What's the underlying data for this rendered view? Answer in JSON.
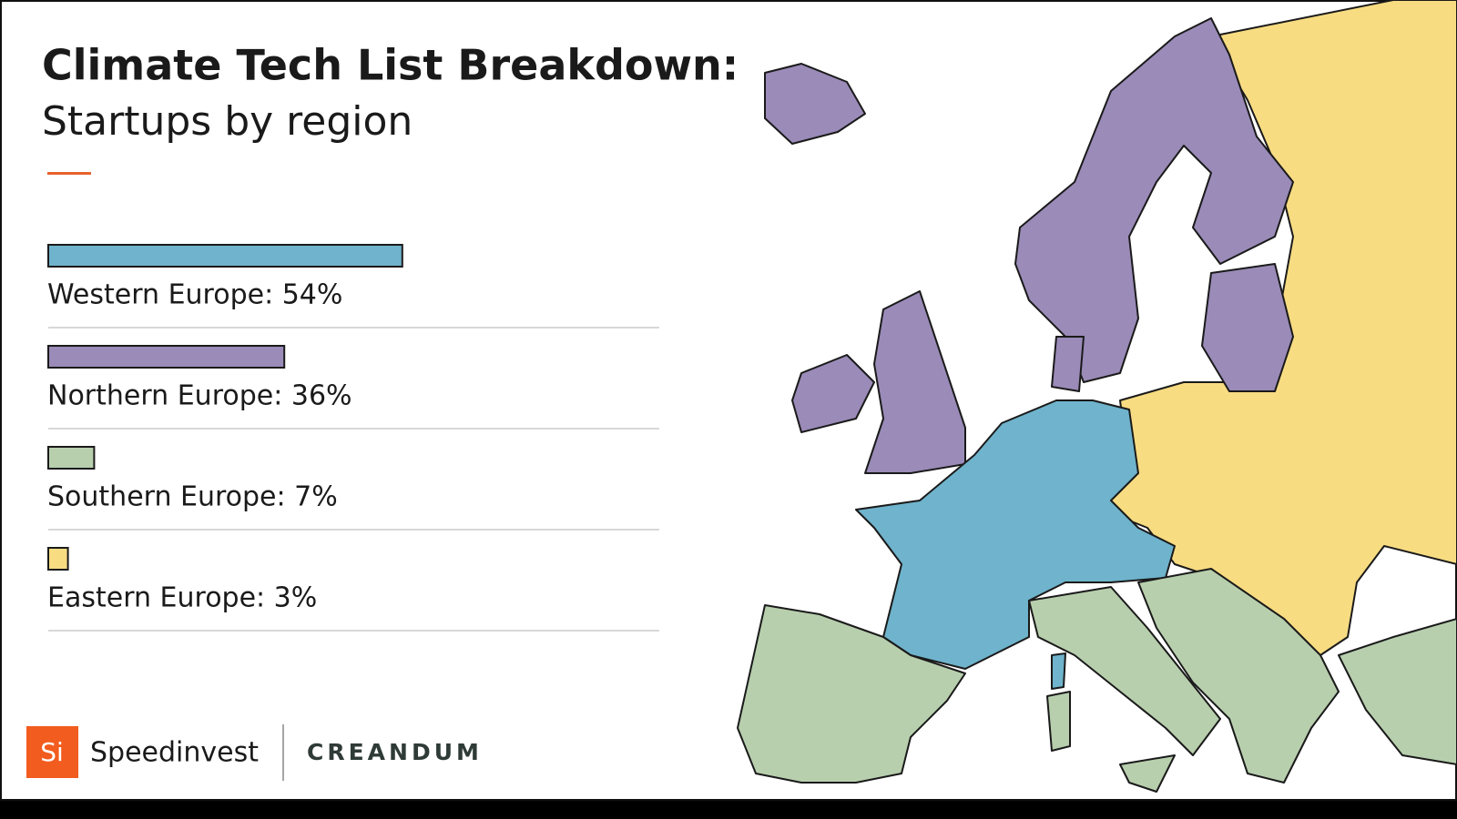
{
  "chart_data": {
    "type": "bar",
    "title": "Climate Tech List Breakdown:",
    "subtitle": "Startups by region",
    "values": [
      54,
      36,
      7,
      3
    ],
    "value_labels": [
      "Western Europe: 54%",
      "Northern Europe: 36%",
      "Southern Europe: 7%",
      "Eastern Europe: 3%"
    ],
    "colors": [
      "#6fb3cc",
      "#9a8bb8",
      "#b8cfae",
      "#f8dc82"
    ]
  },
  "logos": {
    "mark": "Si",
    "speedinvest": "Speedinvest",
    "creandum": "CREANDUM"
  }
}
